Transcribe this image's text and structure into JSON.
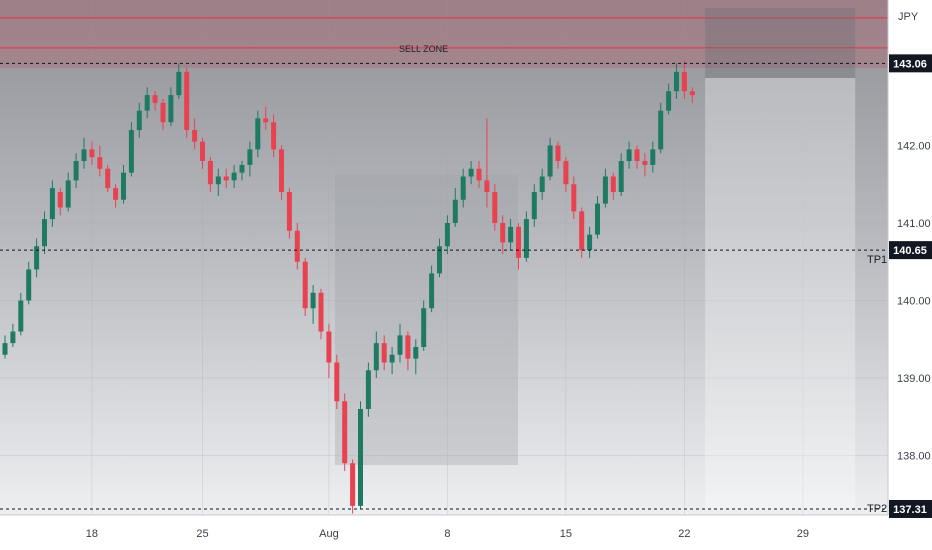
{
  "chart_data": {
    "type": "candlestick",
    "currency": "JPY",
    "y_ticks": [
      138.0,
      139.0,
      140.0,
      141.0,
      142.0
    ],
    "ylim": [
      137.0,
      144.0
    ],
    "x_ticks": [
      {
        "label": "18",
        "index": 11
      },
      {
        "label": "25",
        "index": 25
      },
      {
        "label": "Aug",
        "index": 41
      },
      {
        "label": "8",
        "index": 56
      },
      {
        "label": "15",
        "index": 71
      },
      {
        "label": "22",
        "index": 86
      },
      {
        "label": "29",
        "index": 101
      }
    ],
    "annotations": {
      "sell_zone_label": "SELL ZONE",
      "sell_zone_range": [
        143.0,
        143.75
      ],
      "tp1_label": "TP1",
      "tp2_label": "TP2"
    },
    "levels": [
      {
        "value": 143.06,
        "label": "143.06"
      },
      {
        "value": 140.65,
        "label": "140.65"
      },
      {
        "value": 137.31,
        "label": "137.31"
      }
    ],
    "candles": [
      [
        139.3,
        139.55,
        139.25,
        139.45
      ],
      [
        139.45,
        139.7,
        139.4,
        139.6
      ],
      [
        139.6,
        140.1,
        139.55,
        140.0
      ],
      [
        140.0,
        140.5,
        139.95,
        140.4
      ],
      [
        140.4,
        140.8,
        140.3,
        140.7
      ],
      [
        140.7,
        141.15,
        140.6,
        141.05
      ],
      [
        141.05,
        141.55,
        140.95,
        141.45
      ],
      [
        141.4,
        141.45,
        141.1,
        141.2
      ],
      [
        141.2,
        141.65,
        141.15,
        141.55
      ],
      [
        141.55,
        141.9,
        141.45,
        141.8
      ],
      [
        141.8,
        142.1,
        141.7,
        141.95
      ],
      [
        141.95,
        142.05,
        141.75,
        141.85
      ],
      [
        141.85,
        142.0,
        141.6,
        141.7
      ],
      [
        141.7,
        141.75,
        141.4,
        141.45
      ],
      [
        141.45,
        141.5,
        141.2,
        141.3
      ],
      [
        141.3,
        141.75,
        141.25,
        141.65
      ],
      [
        141.65,
        142.3,
        141.6,
        142.2
      ],
      [
        142.2,
        142.55,
        142.1,
        142.45
      ],
      [
        142.45,
        142.75,
        142.35,
        142.65
      ],
      [
        142.65,
        142.7,
        142.45,
        142.55
      ],
      [
        142.55,
        142.6,
        142.2,
        142.3
      ],
      [
        142.3,
        142.75,
        142.25,
        142.65
      ],
      [
        142.65,
        143.06,
        142.6,
        142.95
      ],
      [
        142.95,
        143.0,
        142.1,
        142.2
      ],
      [
        142.2,
        142.35,
        141.95,
        142.05
      ],
      [
        142.05,
        142.1,
        141.7,
        141.8
      ],
      [
        141.8,
        141.85,
        141.4,
        141.5
      ],
      [
        141.5,
        141.7,
        141.35,
        141.6
      ],
      [
        141.6,
        141.7,
        141.45,
        141.55
      ],
      [
        141.55,
        141.75,
        141.45,
        141.65
      ],
      [
        141.65,
        141.8,
        141.55,
        141.75
      ],
      [
        141.75,
        142.05,
        141.6,
        141.95
      ],
      [
        141.95,
        142.45,
        141.85,
        142.35
      ],
      [
        142.35,
        142.5,
        142.2,
        142.3
      ],
      [
        142.3,
        142.4,
        141.85,
        141.95
      ],
      [
        141.95,
        142.0,
        141.3,
        141.4
      ],
      [
        141.4,
        141.45,
        140.8,
        140.9
      ],
      [
        140.9,
        141.0,
        140.4,
        140.5
      ],
      [
        140.5,
        140.55,
        139.8,
        139.9
      ],
      [
        139.9,
        140.2,
        139.7,
        140.1
      ],
      [
        140.1,
        140.15,
        139.5,
        139.6
      ],
      [
        139.6,
        139.7,
        139.0,
        139.2
      ],
      [
        139.2,
        139.3,
        138.6,
        138.7
      ],
      [
        138.7,
        138.8,
        137.8,
        137.9
      ],
      [
        137.9,
        137.95,
        137.25,
        137.35
      ],
      [
        137.35,
        138.7,
        137.31,
        138.6
      ],
      [
        138.6,
        139.2,
        138.5,
        139.1
      ],
      [
        139.1,
        139.6,
        139.0,
        139.45
      ],
      [
        139.45,
        139.55,
        139.1,
        139.2
      ],
      [
        139.2,
        139.4,
        139.05,
        139.3
      ],
      [
        139.3,
        139.7,
        139.2,
        139.55
      ],
      [
        139.55,
        139.6,
        139.1,
        139.25
      ],
      [
        139.25,
        139.5,
        139.05,
        139.4
      ],
      [
        139.4,
        140.0,
        139.35,
        139.9
      ],
      [
        139.9,
        140.45,
        139.85,
        140.35
      ],
      [
        140.35,
        140.8,
        140.3,
        140.7
      ],
      [
        140.7,
        141.1,
        140.6,
        141.0
      ],
      [
        141.0,
        141.45,
        140.95,
        141.3
      ],
      [
        141.3,
        141.7,
        141.2,
        141.6
      ],
      [
        141.6,
        141.8,
        141.5,
        141.7
      ],
      [
        141.7,
        141.8,
        141.45,
        141.55
      ],
      [
        141.55,
        142.35,
        141.2,
        141.4
      ],
      [
        141.4,
        141.5,
        140.9,
        141.0
      ],
      [
        141.0,
        141.1,
        140.6,
        140.75
      ],
      [
        140.75,
        141.05,
        140.65,
        140.95
      ],
      [
        140.95,
        141.0,
        140.4,
        140.55
      ],
      [
        140.55,
        141.15,
        140.5,
        141.05
      ],
      [
        141.05,
        141.5,
        140.95,
        141.4
      ],
      [
        141.4,
        141.7,
        141.3,
        141.6
      ],
      [
        141.6,
        142.1,
        141.55,
        142.0
      ],
      [
        142.0,
        142.05,
        141.7,
        141.8
      ],
      [
        141.8,
        141.85,
        141.4,
        141.5
      ],
      [
        141.5,
        141.6,
        141.05,
        141.15
      ],
      [
        141.15,
        141.2,
        140.55,
        140.65
      ],
      [
        140.65,
        140.95,
        140.55,
        140.85
      ],
      [
        140.85,
        141.35,
        140.8,
        141.25
      ],
      [
        141.25,
        141.7,
        141.2,
        141.6
      ],
      [
        141.6,
        141.65,
        141.3,
        141.4
      ],
      [
        141.4,
        141.9,
        141.35,
        141.8
      ],
      [
        141.8,
        142.05,
        141.7,
        141.95
      ],
      [
        141.95,
        142.0,
        141.7,
        141.8
      ],
      [
        141.8,
        141.9,
        141.6,
        141.75
      ],
      [
        141.75,
        142.05,
        141.65,
        141.95
      ],
      [
        141.95,
        142.55,
        141.9,
        142.45
      ],
      [
        142.45,
        142.8,
        142.4,
        142.7
      ],
      [
        142.7,
        143.06,
        142.6,
        142.95
      ],
      [
        142.95,
        143.1,
        142.6,
        142.7
      ],
      [
        142.7,
        142.75,
        142.55,
        142.65
      ]
    ]
  }
}
